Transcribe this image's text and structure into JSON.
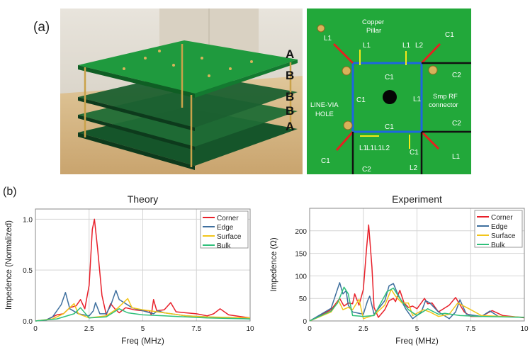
{
  "panel_labels": {
    "a": "(a)",
    "b": "(b)"
  },
  "photo_left": {
    "layer_labels": [
      "A",
      "B",
      "B",
      "B",
      "A"
    ]
  },
  "photo_right": {
    "annotations": {
      "copper_pillar_1": "Copper",
      "copper_pillar_2": "Pillar",
      "smp_1": "Smp RF",
      "smp_2": "connector",
      "via_1": "LINE-VIA",
      "via_2": "HOLE"
    },
    "component_labels": [
      "L1",
      "L1",
      "L1",
      "L2",
      "C1",
      "C1",
      "C2",
      "C1",
      "L1",
      "C2",
      "C1",
      "L1",
      "L1",
      "L1",
      "L2",
      "C1",
      "C1",
      "L1",
      "C2",
      "L2"
    ]
  },
  "colors": {
    "Corner": "#e8202a",
    "Edge": "#3e6f9e",
    "Surface": "#f2c51a",
    "Bulk": "#2fc07a"
  },
  "chart_data": [
    {
      "type": "line",
      "title": "Theory",
      "xlabel": "Freq (MHz)",
      "ylabel": "Impedence (Normalized)",
      "xlim": [
        0,
        10
      ],
      "ylim": [
        0,
        1.1
      ],
      "xticks": [
        "0",
        "2.5",
        "5",
        "7.5",
        "10"
      ],
      "xtick_values": [
        0,
        2.5,
        5,
        7.5,
        10
      ],
      "yticks": [
        "0.0",
        "0.5",
        "1.0"
      ],
      "ytick_values": [
        0,
        0.5,
        1.0
      ],
      "grid": true,
      "legend": "top-right",
      "series": [
        {
          "name": "Corner",
          "points": [
            [
              0,
              0
            ],
            [
              0.5,
              0.01
            ],
            [
              1,
              0.06
            ],
            [
              1.3,
              0.07
            ],
            [
              1.6,
              0.13
            ],
            [
              1.9,
              0.15
            ],
            [
              2.1,
              0.21
            ],
            [
              2.3,
              0.12
            ],
            [
              2.5,
              0.35
            ],
            [
              2.65,
              0.9
            ],
            [
              2.75,
              1.0
            ],
            [
              2.9,
              0.7
            ],
            [
              3.1,
              0.25
            ],
            [
              3.3,
              0.06
            ],
            [
              3.5,
              0.17
            ],
            [
              3.7,
              0.12
            ],
            [
              3.9,
              0.08
            ],
            [
              4.2,
              0.13
            ],
            [
              4.6,
              0.11
            ],
            [
              5.0,
              0.1
            ],
            [
              5.3,
              0.1
            ],
            [
              5.4,
              0.06
            ],
            [
              5.5,
              0.21
            ],
            [
              5.65,
              0.1
            ],
            [
              6.0,
              0.11
            ],
            [
              6.3,
              0.18
            ],
            [
              6.55,
              0.09
            ],
            [
              7,
              0.08
            ],
            [
              7.5,
              0.07
            ],
            [
              8,
              0.05
            ],
            [
              8.3,
              0.07
            ],
            [
              8.6,
              0.12
            ],
            [
              9,
              0.06
            ],
            [
              10,
              0.03
            ]
          ]
        },
        {
          "name": "Edge",
          "points": [
            [
              0,
              0
            ],
            [
              0.5,
              0.01
            ],
            [
              0.8,
              0.04
            ],
            [
              1.2,
              0.16
            ],
            [
              1.4,
              0.28
            ],
            [
              1.6,
              0.12
            ],
            [
              2,
              0.07
            ],
            [
              2.5,
              0.05
            ],
            [
              2.7,
              0.1
            ],
            [
              2.8,
              0.18
            ],
            [
              3,
              0.07
            ],
            [
              3.3,
              0.07
            ],
            [
              3.5,
              0.15
            ],
            [
              3.75,
              0.3
            ],
            [
              3.9,
              0.21
            ],
            [
              4.5,
              0.13
            ],
            [
              5.5,
              0.07
            ],
            [
              5.7,
              0.1
            ],
            [
              6,
              0.08
            ],
            [
              7,
              0.05
            ],
            [
              8,
              0.04
            ],
            [
              10,
              0.02
            ]
          ]
        },
        {
          "name": "Surface",
          "points": [
            [
              0,
              0
            ],
            [
              0.8,
              0.02
            ],
            [
              1.3,
              0.07
            ],
            [
              1.8,
              0.17
            ],
            [
              2.0,
              0.07
            ],
            [
              2.5,
              0.03
            ],
            [
              3.3,
              0.05
            ],
            [
              3.8,
              0.12
            ],
            [
              4.3,
              0.22
            ],
            [
              4.5,
              0.13
            ],
            [
              5,
              0.11
            ],
            [
              6,
              0.08
            ],
            [
              7,
              0.05
            ],
            [
              8,
              0.04
            ],
            [
              10,
              0.03
            ]
          ]
        },
        {
          "name": "Bulk",
          "points": [
            [
              0,
              0
            ],
            [
              1,
              0.02
            ],
            [
              1.8,
              0.07
            ],
            [
              2.1,
              0.13
            ],
            [
              2.5,
              0.03
            ],
            [
              3.3,
              0.04
            ],
            [
              3.9,
              0.12
            ],
            [
              4.3,
              0.08
            ],
            [
              5,
              0.06
            ],
            [
              6,
              0.05
            ],
            [
              7,
              0.04
            ],
            [
              8,
              0.03
            ],
            [
              10,
              0.02
            ]
          ]
        }
      ]
    },
    {
      "type": "line",
      "title": "Experiment",
      "xlabel": "Freq (MHz)",
      "ylabel": "Impedence (Ω)",
      "xlim": [
        0,
        10
      ],
      "ylim": [
        0,
        250
      ],
      "xticks": [
        "0",
        "2.5",
        "5",
        "7.5",
        "10"
      ],
      "xtick_values": [
        0,
        2.5,
        5,
        7.5,
        10
      ],
      "yticks": [
        "0",
        "50",
        "100",
        "150",
        "200"
      ],
      "ytick_values": [
        0,
        50,
        100,
        150,
        200
      ],
      "grid": true,
      "legend": "top-right",
      "series": [
        {
          "name": "Corner",
          "points": [
            [
              0,
              0
            ],
            [
              1,
              25
            ],
            [
              1.4,
              50
            ],
            [
              1.6,
              33
            ],
            [
              1.8,
              40
            ],
            [
              2,
              38
            ],
            [
              2.1,
              60
            ],
            [
              2.3,
              35
            ],
            [
              2.5,
              70
            ],
            [
              2.65,
              160
            ],
            [
              2.75,
              213
            ],
            [
              2.9,
              120
            ],
            [
              3.0,
              30
            ],
            [
              3.2,
              8
            ],
            [
              3.5,
              25
            ],
            [
              3.7,
              45
            ],
            [
              3.9,
              50
            ],
            [
              4,
              43
            ],
            [
              4.2,
              68
            ],
            [
              4.4,
              40
            ],
            [
              4.6,
              30
            ],
            [
              4.8,
              33
            ],
            [
              5,
              27
            ],
            [
              5.35,
              50
            ],
            [
              5.5,
              38
            ],
            [
              5.7,
              40
            ],
            [
              6,
              20
            ],
            [
              6.5,
              35
            ],
            [
              6.8,
              52
            ],
            [
              7.2,
              20
            ],
            [
              7.5,
              10
            ],
            [
              8,
              10
            ],
            [
              8.5,
              23
            ],
            [
              9,
              12
            ],
            [
              10,
              7
            ]
          ]
        },
        {
          "name": "Edge",
          "points": [
            [
              0,
              0
            ],
            [
              1,
              28
            ],
            [
              1.4,
              85
            ],
            [
              1.55,
              60
            ],
            [
              1.7,
              67
            ],
            [
              1.8,
              35
            ],
            [
              2,
              20
            ],
            [
              2.5,
              15
            ],
            [
              2.7,
              45
            ],
            [
              2.8,
              55
            ],
            [
              3,
              15
            ],
            [
              3.5,
              45
            ],
            [
              3.7,
              78
            ],
            [
              3.9,
              83
            ],
            [
              4.1,
              60
            ],
            [
              4.5,
              25
            ],
            [
              4.8,
              5
            ],
            [
              5.2,
              20
            ],
            [
              5.4,
              45
            ],
            [
              5.6,
              40
            ],
            [
              6,
              20
            ],
            [
              6.5,
              5
            ],
            [
              6.8,
              20
            ],
            [
              7,
              47
            ],
            [
              7.3,
              15
            ],
            [
              8,
              10
            ],
            [
              8.4,
              22
            ],
            [
              8.8,
              10
            ],
            [
              10,
              8
            ]
          ]
        },
        {
          "name": "Surface",
          "points": [
            [
              0,
              0
            ],
            [
              1,
              20
            ],
            [
              1.35,
              45
            ],
            [
              1.55,
              25
            ],
            [
              1.8,
              30
            ],
            [
              2.0,
              25
            ],
            [
              2.3,
              48
            ],
            [
              2.5,
              5
            ],
            [
              3,
              13
            ],
            [
              3.5,
              35
            ],
            [
              3.8,
              70
            ],
            [
              4,
              55
            ],
            [
              4.3,
              40
            ],
            [
              4.6,
              40
            ],
            [
              4.8,
              12
            ],
            [
              5.3,
              25
            ],
            [
              5.6,
              20
            ],
            [
              6,
              10
            ],
            [
              6.5,
              15
            ],
            [
              6.9,
              40
            ],
            [
              7.5,
              25
            ],
            [
              8,
              12
            ],
            [
              10,
              8
            ]
          ]
        },
        {
          "name": "Bulk",
          "points": [
            [
              0,
              0
            ],
            [
              1,
              22
            ],
            [
              1.3,
              40
            ],
            [
              1.6,
              75
            ],
            [
              1.8,
              60
            ],
            [
              2,
              12
            ],
            [
              2.5,
              10
            ],
            [
              3,
              12
            ],
            [
              3.6,
              65
            ],
            [
              3.9,
              73
            ],
            [
              4.2,
              50
            ],
            [
              4.6,
              25
            ],
            [
              5,
              12
            ],
            [
              5.5,
              27
            ],
            [
              6,
              15
            ],
            [
              6.3,
              17
            ],
            [
              7,
              12
            ],
            [
              8,
              10
            ],
            [
              10,
              8
            ]
          ]
        }
      ]
    }
  ]
}
